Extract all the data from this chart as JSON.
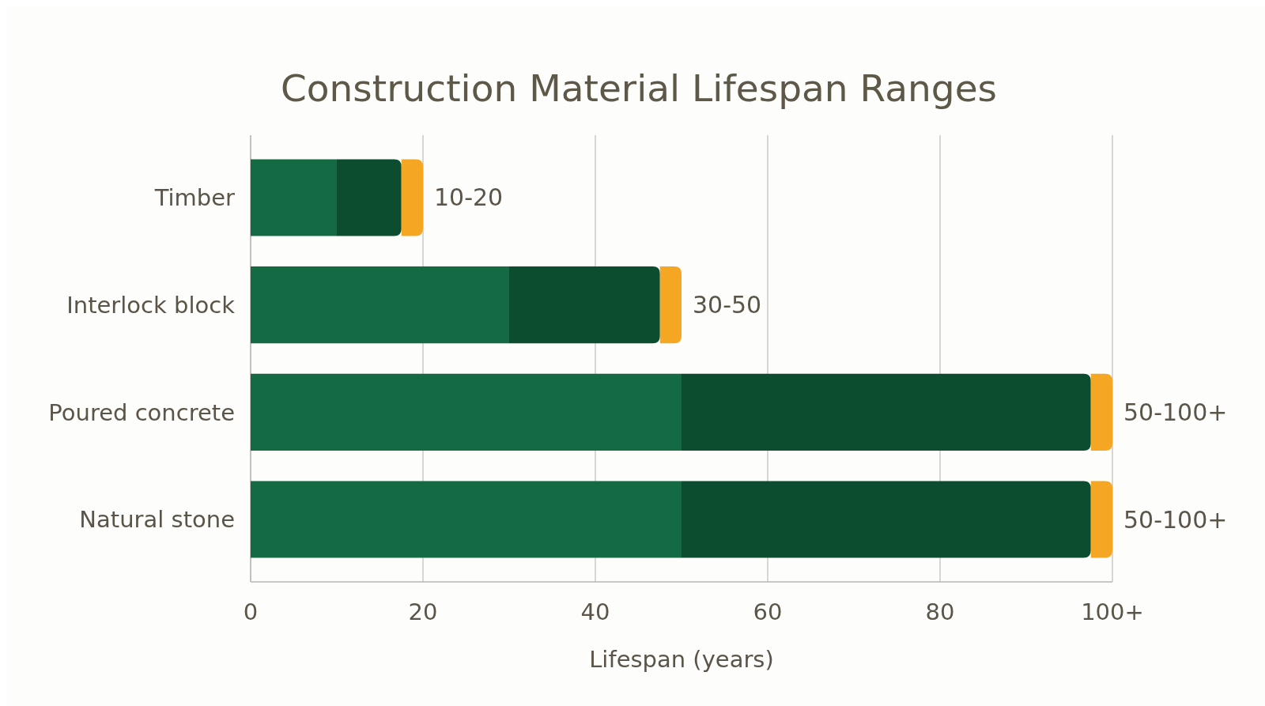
{
  "chart_data": {
    "type": "bar",
    "orientation": "horizontal",
    "stacked": true,
    "title": "Construction Material Lifespan Ranges",
    "xlabel": "Lifespan (years)",
    "categories": [
      "Timber",
      "Interlock block",
      "Poured concrete",
      "Natural stone"
    ],
    "series": [
      {
        "color": "#146a42",
        "values": [
          10,
          30,
          50,
          50
        ]
      },
      {
        "color": "#0d4d2f",
        "values": [
          7.5,
          17.5,
          47.5,
          47.5
        ]
      },
      {
        "color": "#f5a623",
        "values": [
          2.5,
          2.5,
          2.5,
          2.5
        ],
        "value_labels": [
          "10-20",
          "30-50",
          "50-100+",
          "50-100+"
        ]
      }
    ],
    "xlim": [
      0,
      100
    ],
    "xticks": [
      0,
      20,
      40,
      60,
      80,
      {
        "value": 100,
        "label": "100+"
      }
    ],
    "grid": "x"
  }
}
